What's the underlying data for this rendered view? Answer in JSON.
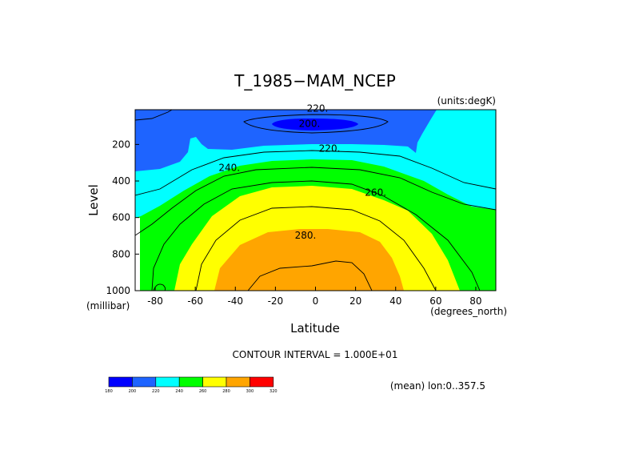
{
  "chart_data": {
    "type": "heatmap",
    "title": "T_1985−MAM_NCEP",
    "units": "(units:degK)",
    "xlabel": "Latitude",
    "ylabel": "Level",
    "xunits": "(degrees_north)",
    "yunits": "(millibar)",
    "xlim": [
      -90,
      90
    ],
    "ylim": [
      1000,
      10
    ],
    "xticks": [
      -80,
      -60,
      -40,
      -20,
      0,
      20,
      40,
      60,
      80
    ],
    "yticks": [
      200,
      400,
      600,
      800,
      1000
    ],
    "contour_interval_text": "CONTOUR INTERVAL = 1.000E+01",
    "mean_text": "(mean) lon:0..357.5",
    "color_levels": [
      180,
      200,
      220,
      240,
      260,
      280,
      300,
      320
    ],
    "colors": [
      "#0000ff",
      "#1e64ff",
      "#00ffff",
      "#00ff00",
      "#ffff00",
      "#ffa500",
      "#ff0000"
    ],
    "contour_labels": [
      {
        "text": "200.",
        "lat": -3,
        "lev": 105
      },
      {
        "text": "220.",
        "lat": 7,
        "lev": 240
      },
      {
        "text": "220.",
        "lat": 1,
        "lev": 20
      },
      {
        "text": "240.",
        "lat": -43,
        "lev": 345
      },
      {
        "text": "260.",
        "lat": 30,
        "lev": 480
      },
      {
        "text": "280.",
        "lat": -5,
        "lev": 715
      }
    ]
  }
}
